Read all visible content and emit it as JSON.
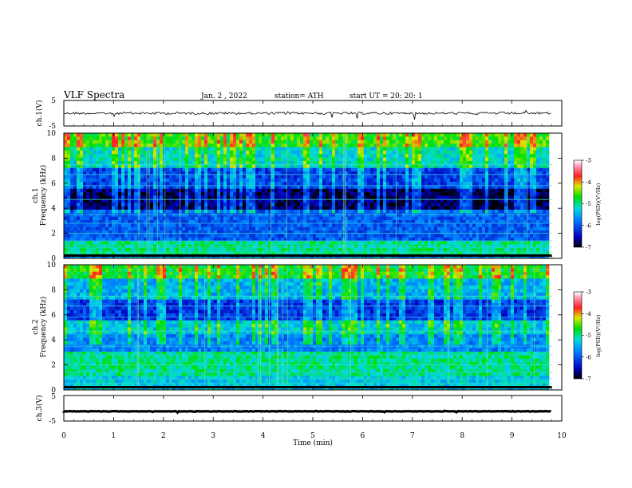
{
  "header": {
    "title": "VLF Spectra",
    "date": "Jan. 2 , 2022",
    "station": "station= ATH",
    "start": "start UT = 20: 20: 1"
  },
  "chart_data": [
    {
      "type": "line",
      "name": "ch1-waveform",
      "ylabel": "ch.1(V)",
      "ylim": [
        -5,
        5
      ],
      "yticks": [
        "5",
        "-5"
      ],
      "baseline": 0
    },
    {
      "type": "heatmap",
      "name": "ch1-spectrogram",
      "ylabel_line1": "ch.1",
      "ylabel_line2": "Frequency (kHz)",
      "ylim": [
        0,
        10
      ],
      "yticks": [
        "0",
        "2",
        "4",
        "6",
        "8",
        "10"
      ],
      "colorbar": {
        "label": "log(PSD)(V²/Hz)",
        "range": [
          -7,
          -3
        ],
        "ticks": [
          "-3",
          "-4",
          "-5",
          "-6",
          "-7"
        ]
      }
    },
    {
      "type": "heatmap",
      "name": "ch2-spectrogram",
      "ylabel_line1": "ch.2",
      "ylabel_line2": "Frequency (kHz)",
      "ylim": [
        0,
        10
      ],
      "yticks": [
        "0",
        "2",
        "4",
        "6",
        "8",
        "10"
      ],
      "colorbar": {
        "label": "log(PSD)(V²/Hz)",
        "range": [
          -7,
          -3
        ],
        "ticks": [
          "-3",
          "-4",
          "-5",
          "-6",
          "-7"
        ]
      }
    },
    {
      "type": "line",
      "name": "ch3-waveform",
      "ylabel": "ch.3(V)",
      "ylim": [
        -5,
        5
      ],
      "yticks": [
        "5",
        "-5"
      ],
      "baseline": -1.2
    }
  ],
  "xaxis": {
    "label": "Time (min)",
    "range": [
      0,
      10
    ],
    "ticks": [
      "0",
      "1",
      "2",
      "3",
      "4",
      "5",
      "6",
      "7",
      "8",
      "9",
      "10"
    ],
    "data_end": 9.8
  }
}
